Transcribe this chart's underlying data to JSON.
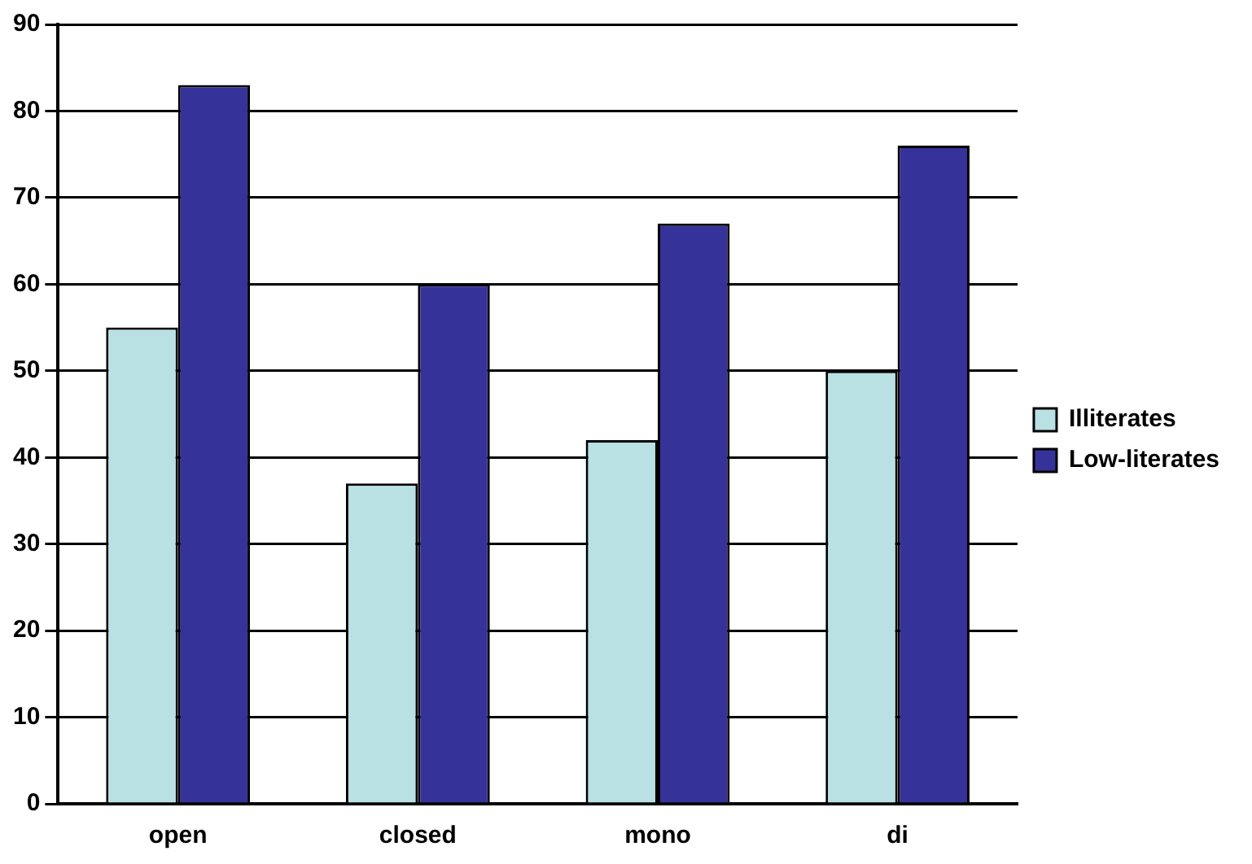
{
  "chart_data": {
    "type": "bar",
    "categories": [
      "open",
      "closed",
      "mono",
      "di"
    ],
    "series": [
      {
        "name": "Illiterates",
        "color": "#b9e0e3",
        "values": [
          55,
          37,
          42,
          50
        ]
      },
      {
        "name": "Low-literates",
        "color": "#353399",
        "values": [
          83,
          60,
          67,
          76
        ]
      }
    ],
    "ylim": [
      0,
      90
    ],
    "yticks": [
      0,
      10,
      20,
      30,
      40,
      50,
      60,
      70,
      80,
      90
    ],
    "grid": "y",
    "legend": "right"
  }
}
